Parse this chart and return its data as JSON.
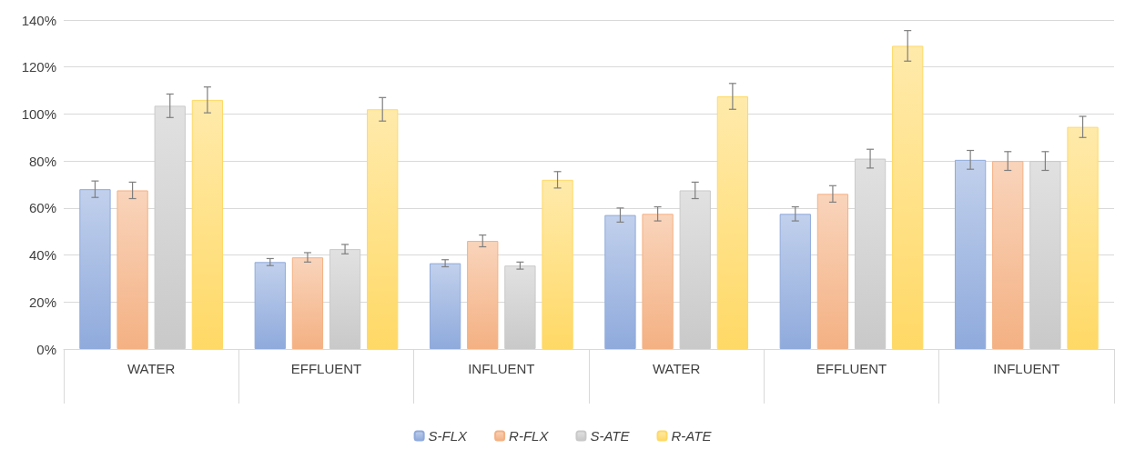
{
  "chart_data": {
    "type": "bar",
    "categories": [
      "WATER",
      "EFFLUENT",
      "INFLUENT",
      "WATER",
      "EFFLUENT",
      "INFLUENT"
    ],
    "series": [
      {
        "name": "S-FLX",
        "color": "#8faadc",
        "values": [
          68,
          37,
          36.5,
          57,
          57.5,
          80.5
        ],
        "errors": [
          3.5,
          1.5,
          1.5,
          3,
          3,
          4
        ]
      },
      {
        "name": "R-FLX",
        "color": "#f4b183",
        "values": [
          67.5,
          39,
          46,
          57.5,
          66,
          80
        ],
        "errors": [
          3.5,
          2,
          2.5,
          3,
          3.5,
          4
        ]
      },
      {
        "name": "S-ATE",
        "color": "#c9c9c9",
        "values": [
          103.5,
          42.5,
          35.5,
          67.5,
          81,
          80
        ],
        "errors": [
          5,
          2,
          1.5,
          3.5,
          4,
          4
        ]
      },
      {
        "name": "R-ATE",
        "color": "#ffd966",
        "values": [
          106,
          102,
          72,
          107.5,
          129,
          94.5
        ],
        "errors": [
          5.5,
          5,
          3.5,
          5.5,
          6.5,
          4.5
        ]
      }
    ],
    "ylim": [
      0,
      140
    ],
    "yticks": [
      {
        "value": 0,
        "label": "0%"
      },
      {
        "value": 20,
        "label": "20%"
      },
      {
        "value": 40,
        "label": "40%"
      },
      {
        "value": 60,
        "label": "60%"
      },
      {
        "value": 80,
        "label": "80%"
      },
      {
        "value": 100,
        "label": "100%"
      },
      {
        "value": 120,
        "label": "120%"
      },
      {
        "value": 140,
        "label": "140%"
      }
    ],
    "grid": "y",
    "legend": "bottom"
  }
}
